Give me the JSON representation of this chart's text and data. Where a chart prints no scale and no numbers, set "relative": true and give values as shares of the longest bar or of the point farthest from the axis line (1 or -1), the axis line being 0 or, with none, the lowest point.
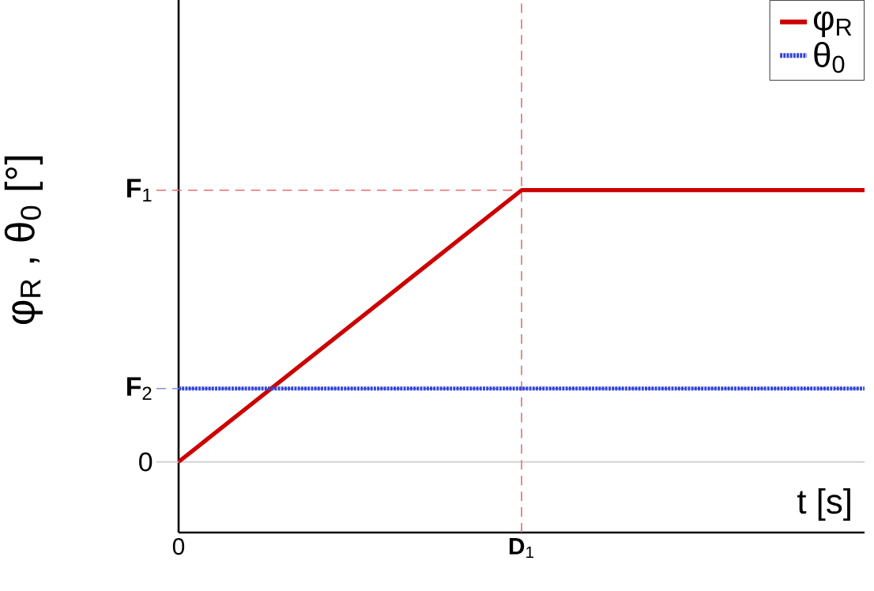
{
  "chart_data": {
    "type": "line",
    "relative": true,
    "xlabel": "t  [s]",
    "ylabel": "φ$_{R}$ ,  θ$_{0}$ [°]",
    "x": [
      0,
      1,
      2
    ],
    "series": [
      {
        "name": "φ$_{R}$",
        "color": "#cc0000",
        "values": [
          0,
          1,
          1
        ],
        "line_style": "solid"
      },
      {
        "name": "θ$_{0}$",
        "color": "#3344dd",
        "x": [
          0,
          2
        ],
        "values": [
          0.27,
          0.27
        ],
        "line_style": "dotted"
      }
    ],
    "xlim": [
      0,
      2
    ],
    "xticks": [
      0,
      {
        "value": 1,
        "label": "**D**$_{1}$"
      }
    ],
    "ref_lines": [
      {
        "axis": "y",
        "value": 0,
        "label": "0",
        "color": "#cccccc",
        "line_style": "solid"
      },
      {
        "axis": "y",
        "value": 1,
        "label": "**F**$_{1}$",
        "color": "#e07070",
        "line_style": "dashed"
      },
      {
        "axis": "x",
        "value": 1,
        "color": "#e07070",
        "line_style": "dashed"
      },
      {
        "axis": "y",
        "value": 0.27,
        "label": "**F**$_{2}$",
        "color": "#8888ee",
        "line_style": "dashed"
      }
    ],
    "grid": false,
    "legend": "top right",
    "marker": "none"
  }
}
